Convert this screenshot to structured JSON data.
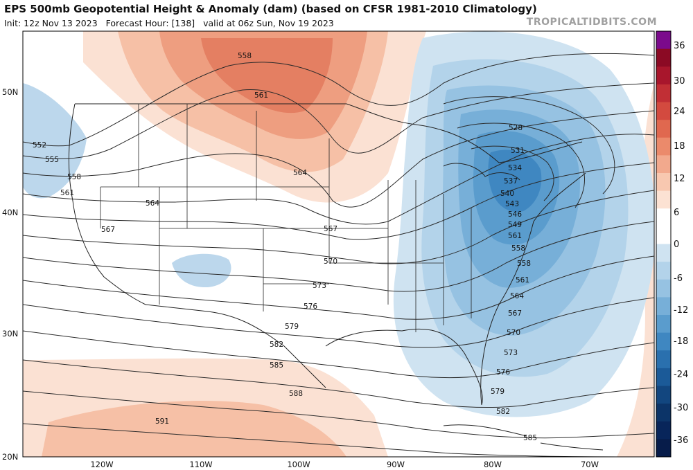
{
  "header": {
    "title": "EPS 500mb Geopotential Height & Anomaly (dam) (based on CFSR 1981-2010 Climatology)",
    "init": "Init: 12z Nov 13 2023",
    "forecast_hour": "Forecast Hour: [138]",
    "valid": "valid at 06z Sun, Nov 19 2023",
    "brand": "TROPICALTIDBITS.COM"
  },
  "map": {
    "lat_labels": [
      "50N",
      "40N",
      "30N",
      "20N"
    ],
    "lon_labels": [
      "120W",
      "110W",
      "100W",
      "90W",
      "80W",
      "70W"
    ],
    "contours": [
      {
        "label": "552"
      },
      {
        "label": "555"
      },
      {
        "label": "558"
      },
      {
        "label": "561"
      },
      {
        "label": "564"
      },
      {
        "label": "567"
      },
      {
        "label": "570"
      },
      {
        "label": "573"
      },
      {
        "label": "576"
      },
      {
        "label": "579"
      },
      {
        "label": "582"
      },
      {
        "label": "585"
      },
      {
        "label": "588"
      },
      {
        "label": "591"
      },
      {
        "label": "528"
      },
      {
        "label": "531"
      },
      {
        "label": "534"
      },
      {
        "label": "537"
      },
      {
        "label": "540"
      },
      {
        "label": "543"
      },
      {
        "label": "546"
      },
      {
        "label": "549"
      }
    ]
  },
  "colorbar": {
    "ticks": [
      "36",
      "30",
      "24",
      "18",
      "12",
      "6",
      "0",
      "-6",
      "-12",
      "-18",
      "-24",
      "-30",
      "-36"
    ],
    "colors": [
      "#7b0a8c",
      "#8b0a24",
      "#a8162c",
      "#c12f35",
      "#d34a3f",
      "#e0684f",
      "#eb8a6b",
      "#f2a98d",
      "#f8c8b0",
      "#fce2d3",
      "#ffffff",
      "#ffffff",
      "#cfe3f1",
      "#b3d3ea",
      "#96c2e2",
      "#77afd8",
      "#5a9ccd",
      "#3f87c1",
      "#2a70ae",
      "#1b5a98",
      "#12467f",
      "#0c3468",
      "#08255a",
      "#071c4a"
    ]
  }
}
